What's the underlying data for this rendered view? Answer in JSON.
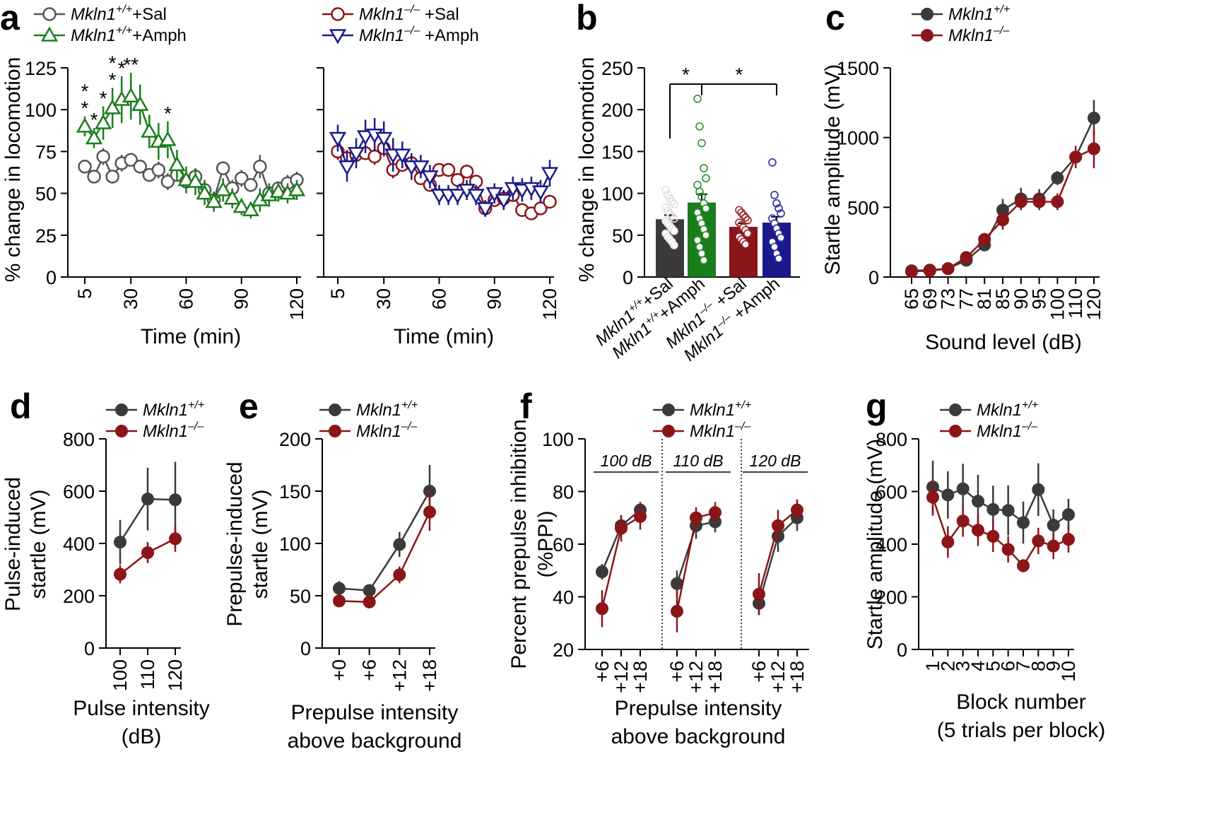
{
  "colors": {
    "wt_sal": "#555555",
    "wt_amph": "#1b7d1b",
    "ko_sal": "#8b1518",
    "ko_amph": "#1a1a8c",
    "wt": "#3a3a3a",
    "ko": "#8b1518"
  },
  "chart_data": [
    {
      "panel": "a",
      "type": "line",
      "xlabel": "Time (min)",
      "ylabel": "% change in locomotion",
      "ylim": [
        0,
        125
      ],
      "xlim": [
        5,
        120
      ],
      "xticks": [
        5,
        30,
        60,
        90,
        120
      ],
      "yticks": [
        0,
        25,
        50,
        75,
        100,
        125
      ],
      "x": [
        5,
        10,
        15,
        20,
        25,
        30,
        35,
        40,
        45,
        50,
        55,
        60,
        65,
        70,
        75,
        80,
        85,
        90,
        95,
        100,
        105,
        110,
        115,
        120
      ],
      "subplots": [
        {
          "series": [
            {
              "name": "Mkln1+/+ +Sal",
              "legend": [
                "Mkln1",
                "+/+",
                "+Sal"
              ],
              "color": "wt_sal",
              "marker": "circle",
              "values": [
                66,
                60,
                72,
                60,
                68,
                70,
                66,
                61,
                64,
                57,
                61,
                57,
                60,
                52,
                46,
                65,
                53,
                59,
                55,
                66,
                50,
                53,
                56,
                58
              ],
              "errors": [
                4,
                4,
                5,
                4,
                5,
                4,
                4,
                4,
                5,
                5,
                4,
                4,
                5,
                6,
                5,
                4,
                5,
                5,
                4,
                7,
                5,
                4,
                5,
                5
              ]
            },
            {
              "name": "Mkln1+/+ +Amph",
              "legend": [
                "Mkln1",
                "+/+",
                "+Amph"
              ],
              "color": "wt_amph",
              "marker": "triangle-up",
              "values": [
                90,
                83,
                92,
                101,
                106,
                108,
                103,
                87,
                81,
                82,
                67,
                58,
                57,
                50,
                45,
                52,
                47,
                42,
                40,
                46,
                49,
                51,
                50,
                52
              ],
              "errors": [
                6,
                6,
                10,
                12,
                14,
                14,
                12,
                10,
                11,
                11,
                9,
                8,
                8,
                7,
                6,
                7,
                6,
                5,
                5,
                7,
                7,
                6,
                6,
                6
              ]
            }
          ],
          "annotations": [
            {
              "x": 5,
              "labels": [
                "*",
                "*"
              ]
            },
            {
              "x": 10,
              "labels": [
                "*"
              ]
            },
            {
              "x": 15,
              "labels": [
                "*"
              ]
            },
            {
              "x": 20,
              "labels": [
                "*",
                "*"
              ]
            },
            {
              "x": 25,
              "labels": [
                "*"
              ]
            },
            {
              "x": 30,
              "labels": [
                "**"
              ]
            },
            {
              "x": 50,
              "labels": [
                "*"
              ]
            }
          ]
        },
        {
          "series": [
            {
              "name": "Mkln1-/- +Sal",
              "legend": [
                "Mkln1",
                "–/–",
                " +Sal"
              ],
              "color": "ko_sal",
              "marker": "circle",
              "values": [
                75,
                71,
                73,
                74,
                72,
                77,
                64,
                67,
                68,
                59,
                55,
                64,
                64,
                58,
                63,
                57,
                41,
                46,
                47,
                49,
                40,
                38,
                41,
                45
              ],
              "errors": [
                5,
                5,
                4,
                4,
                5,
                5,
                5,
                4,
                4,
                4,
                4,
                4,
                4,
                4,
                4,
                4,
                4,
                4,
                4,
                4,
                4,
                4,
                4,
                4
              ]
            },
            {
              "name": "Mkln1-/- +Amph",
              "legend": [
                "Mkln1",
                "–/–",
                " +Amph"
              ],
              "color": "ko_amph",
              "marker": "triangle-down",
              "values": [
                83,
                66,
                74,
                84,
                85,
                83,
                73,
                73,
                66,
                66,
                60,
                49,
                49,
                49,
                52,
                49,
                41,
                50,
                46,
                53,
                52,
                53,
                51,
                62
              ],
              "errors": [
                8,
                9,
                9,
                10,
                10,
                10,
                10,
                8,
                8,
                7,
                7,
                6,
                6,
                6,
                6,
                6,
                5,
                6,
                6,
                7,
                7,
                7,
                7,
                8
              ]
            }
          ]
        }
      ]
    },
    {
      "panel": "b",
      "type": "bar",
      "ylabel": "% change in locomotion",
      "ylim": [
        0,
        250
      ],
      "yticks": [
        0,
        50,
        100,
        150,
        200,
        250
      ],
      "categories": [
        {
          "prefix": "Mkln1",
          "sup": "+/+",
          "suffix": "+Sal"
        },
        {
          "prefix": "Mkln1",
          "sup": "+/+",
          "suffix": "+Amph"
        },
        {
          "prefix": "Mkln1",
          "sup": "–/–",
          "suffix": " +Sal"
        },
        {
          "prefix": "Mkln1",
          "sup": "–/–",
          "suffix": " +Amph"
        }
      ],
      "values": [
        69,
        89,
        60,
        65
      ],
      "errors": [
        5,
        10,
        4,
        7
      ],
      "bar_colors": [
        "wt",
        "wt_amph",
        "ko_sal",
        "ko_amph"
      ],
      "points": [
        [
          104,
          98,
          94,
          90,
          87,
          83,
          79,
          76,
          73,
          70,
          67,
          64,
          61,
          58,
          55,
          52,
          48,
          45,
          42,
          38
        ],
        [
          213,
          180,
          160,
          130,
          118,
          110,
          102,
          96,
          88,
          82,
          77,
          70,
          64,
          57,
          50,
          44,
          36,
          28,
          20
        ],
        [
          80,
          77,
          74,
          71,
          68,
          65,
          62,
          59,
          56,
          52,
          48,
          45,
          42,
          39
        ],
        [
          137,
          98,
          88,
          82,
          76,
          70,
          64,
          58,
          52,
          47,
          42,
          36,
          28,
          22
        ]
      ],
      "significance": [
        {
          "from": 0,
          "to": 1,
          "label": "*"
        },
        {
          "from": 1,
          "to": 3,
          "label": "*"
        }
      ]
    },
    {
      "panel": "c",
      "type": "line",
      "xlabel": "Sound level (dB)",
      "ylabel": "Startle amplitude (mV)",
      "ylim": [
        0,
        1500
      ],
      "yticks": [
        0,
        500,
        1000,
        1500
      ],
      "categories": [
        "65",
        "69",
        "73",
        "77",
        "81",
        "85",
        "90",
        "95",
        "100",
        "110",
        "120"
      ],
      "series": [
        {
          "name": "Mkln1+/+",
          "legend": [
            "Mkln1",
            "+/+"
          ],
          "color": "wt",
          "values": [
            45,
            50,
            60,
            120,
            230,
            480,
            560,
            560,
            710,
            860,
            1140
          ],
          "errors": [
            10,
            10,
            12,
            20,
            35,
            80,
            80,
            70,
            50,
            60,
            130
          ]
        },
        {
          "name": "Mkln1-/-",
          "legend": [
            "Mkln1",
            "–/–"
          ],
          "color": "ko",
          "values": [
            40,
            45,
            60,
            140,
            270,
            410,
            540,
            540,
            540,
            860,
            920
          ],
          "errors": [
            10,
            10,
            12,
            25,
            45,
            70,
            60,
            60,
            60,
            80,
            140
          ]
        }
      ]
    },
    {
      "panel": "d",
      "type": "line",
      "xlabel": [
        "Pulse intensity",
        "(dB)"
      ],
      "ylabel": [
        "Pulse-induced",
        "startle (mV)"
      ],
      "ylim": [
        0,
        800
      ],
      "yticks": [
        0,
        200,
        400,
        600,
        800
      ],
      "categories": [
        "100",
        "110",
        "120"
      ],
      "series": [
        {
          "name": "Mkln1+/+",
          "legend": [
            "Mkln1",
            "+/+"
          ],
          "color": "wt",
          "values": [
            405,
            570,
            567
          ],
          "errors": [
            85,
            120,
            145
          ]
        },
        {
          "name": "Mkln1-/-",
          "legend": [
            "Mkln1",
            "–/–"
          ],
          "color": "ko",
          "values": [
            282,
            365,
            418
          ],
          "errors": [
            35,
            40,
            50
          ]
        }
      ]
    },
    {
      "panel": "e",
      "type": "line",
      "xlabel": [
        "Prepulse intensity",
        "above background"
      ],
      "ylabel": [
        "Prepulse-induced",
        "startle (mV)"
      ],
      "ylim": [
        0,
        200
      ],
      "yticks": [
        0,
        50,
        100,
        150,
        200
      ],
      "categories": [
        "+0",
        "+6",
        "+12",
        "+18"
      ],
      "series": [
        {
          "name": "Mkln1+/+",
          "legend": [
            "Mkln1",
            "+/+"
          ],
          "color": "wt",
          "values": [
            57,
            55,
            99,
            150
          ],
          "errors": [
            7,
            6,
            12,
            25
          ]
        },
        {
          "name": "Mkln1-/-",
          "legend": [
            "Mkln1",
            "–/–"
          ],
          "color": "ko",
          "values": [
            45,
            44,
            70,
            130
          ],
          "errors": [
            4,
            4,
            8,
            18
          ]
        }
      ]
    },
    {
      "panel": "f",
      "type": "line",
      "xlabel": [
        "Prepulse intensity",
        "above background"
      ],
      "ylabel": [
        "Percent prepulse inhibition",
        "(%PPI)"
      ],
      "ylim": [
        20,
        100
      ],
      "yticks": [
        20,
        40,
        60,
        80,
        100
      ],
      "groups": [
        {
          "label": "100 dB",
          "categories": [
            "+6",
            "+12",
            "+18"
          ],
          "series": [
            {
              "name": "Mkln1+/+",
              "color": "wt",
              "values": [
                49.5,
                67,
                73
              ],
              "errors": [
                3,
                4,
                3
              ]
            },
            {
              "name": "Mkln1-/-",
              "color": "ko",
              "values": [
                35.5,
                66,
                70.5
              ],
              "errors": [
                7,
                5,
                5
              ]
            }
          ]
        },
        {
          "label": "110 dB",
          "categories": [
            "+6",
            "+12",
            "+18"
          ],
          "series": [
            {
              "name": "Mkln1+/+",
              "color": "wt",
              "values": [
                45,
                67,
                68.5
              ],
              "errors": [
                5,
                5,
                4
              ]
            },
            {
              "name": "Mkln1-/-",
              "color": "ko",
              "values": [
                34.5,
                70,
                72
              ],
              "errors": [
                8,
                4,
                4
              ]
            }
          ]
        },
        {
          "label": "120 dB",
          "categories": [
            "+6",
            "+12",
            "+18"
          ],
          "series": [
            {
              "name": "Mkln1+/+",
              "color": "wt",
              "values": [
                37.5,
                63,
                70
              ],
              "errors": [
                4,
                6,
                5
              ]
            },
            {
              "name": "Mkln1-/-",
              "color": "ko",
              "values": [
                41,
                67,
                73
              ],
              "errors": [
                8,
                6,
                4
              ]
            }
          ]
        }
      ],
      "legend": [
        {
          "name": "Mkln1+/+",
          "legend": [
            "Mkln1",
            "+/+"
          ],
          "color": "wt"
        },
        {
          "name": "Mkln1-/-",
          "legend": [
            "Mkln1",
            "–/–"
          ],
          "color": "ko"
        }
      ]
    },
    {
      "panel": "g",
      "type": "line",
      "xlabel": [
        "Block number",
        "(5 trials per block)"
      ],
      "ylabel": "Startle amplitude (mV)",
      "ylim": [
        0,
        800
      ],
      "yticks": [
        0,
        200,
        400,
        600,
        800
      ],
      "categories": [
        "1",
        "2",
        "3",
        "4",
        "5",
        "6",
        "7",
        "8",
        "9",
        "10"
      ],
      "series": [
        {
          "name": "Mkln1+/+",
          "legend": [
            "Mkln1",
            "+/+"
          ],
          "color": "wt",
          "values": [
            617,
            587,
            610,
            563,
            532,
            528,
            482,
            607,
            472,
            512
          ],
          "errors": [
            100,
            90,
            95,
            100,
            90,
            95,
            80,
            100,
            60,
            60
          ]
        },
        {
          "name": "Mkln1-/-",
          "legend": [
            "Mkln1",
            "–/–"
          ],
          "color": "ko",
          "values": [
            578,
            408,
            488,
            453,
            430,
            380,
            318,
            412,
            393,
            418
          ],
          "errors": [
            70,
            60,
            60,
            60,
            60,
            50,
            25,
            50,
            50,
            50
          ]
        }
      ]
    }
  ]
}
